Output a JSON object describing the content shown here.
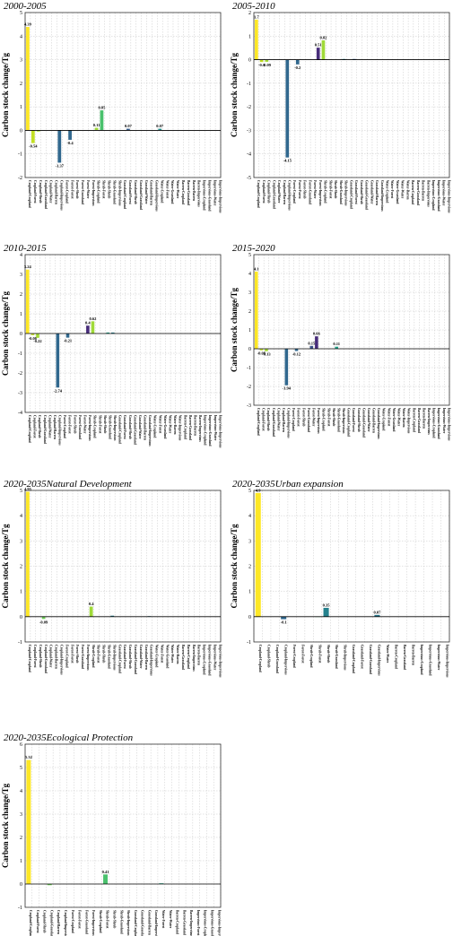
{
  "figure_name": "carbon-stock-change-figure",
  "chart_data": [
    {
      "type": "bar",
      "title": "2000-2005",
      "ylabel": "Carbon stock change/Tg",
      "ylim": [
        -2,
        5
      ],
      "yticks": [
        -2,
        -1,
        0,
        1,
        2,
        3,
        4,
        5
      ],
      "grid": true,
      "categories": [
        "Cropland-Cropland",
        "Cropland-Forest",
        "Cropland-Shrub",
        "Cropland-Grassland",
        "Cropland-Water",
        "Cropland-Barren",
        "Cropland-Impervious",
        "Forest-Cropland",
        "Forest-Forest",
        "Forest-Shrub",
        "Forest-Grassland",
        "Forest-Water",
        "Forest-Impervious",
        "Shrub-Cropland",
        "Shrub-Forest",
        "Shrub-Shrub",
        "Shrub-Grassland",
        "Shrub-Impervious",
        "Grassland-Cropland",
        "Grassland-Forest",
        "Grassland-Shrub",
        "Grassland-Grassland",
        "Grassland-Water",
        "Grassland-Barren",
        "Grassland-Impervious",
        "Water-Cropland",
        "Water-Forest",
        "Water-Grassland",
        "Water-Water",
        "Barren-Cropland",
        "Barren-Grassland",
        "Barren-Barren",
        "Barren-Impervious",
        "Impervious-Cropland",
        "Impervious-Grassland",
        "Impervious-Water",
        "Impervious-Impervious"
      ],
      "values": [
        4.39,
        -0.54,
        -0.05,
        0,
        0,
        0,
        -1.37,
        0,
        -0.4,
        0,
        0,
        0,
        0,
        0.11,
        0.85,
        0,
        0,
        0,
        0,
        0.07,
        0,
        0,
        0,
        0,
        0,
        0.07,
        0,
        0,
        0,
        0,
        0,
        0,
        0,
        0,
        0,
        0,
        0
      ],
      "data_labels": {
        "0": "4.39",
        "1": "-0.54",
        "6": "-1.37",
        "8": "-0.4",
        "13": "0.11",
        "14": "0.85",
        "19": "0.07",
        "25": "0.07"
      }
    },
    {
      "type": "bar",
      "title": "2005-2010",
      "ylabel": "Carbon stock change/Tg",
      "ylim": [
        -5,
        2
      ],
      "yticks": [
        -5,
        -4,
        -3,
        -2,
        -1,
        0,
        1,
        2
      ],
      "grid": true,
      "categories": [
        "Cropland-Cropland",
        "Cropland-Forest",
        "Cropland-Shrub",
        "Cropland-Grassland",
        "Cropland-Water",
        "Cropland-Barren",
        "Cropland-Impervious",
        "Forest-Cropland",
        "Forest-Forest",
        "Forest-Shrub",
        "Forest-Grassland",
        "Forest-Water",
        "Forest-Impervious",
        "Shrub-Cropland",
        "Shrub-Forest",
        "Shrub-Shrub",
        "Shrub-Grassland",
        "Shrub-Impervious",
        "Grassland-Cropland",
        "Grassland-Forest",
        "Grassland-Shrub",
        "Grassland-Grassland",
        "Grassland-Water",
        "Grassland-Barren",
        "Grassland-Impervious",
        "Water-Cropland",
        "Water-Forest",
        "Water-Grassland",
        "Water-Water",
        "Water-Barren",
        "Barren-Cropland",
        "Barren-Grassland",
        "Barren-Barren",
        "Barren-Impervious",
        "Impervious-Cropland",
        "Impervious-Grassland",
        "Impervious-Water",
        "Impervious-Impervious"
      ],
      "values": [
        1.7,
        -0.1,
        -0.09,
        0,
        0,
        0,
        -4.15,
        0,
        -0.2,
        0,
        0,
        0,
        0.51,
        0.82,
        0,
        0,
        0,
        0.03,
        0,
        0.03,
        0,
        0,
        0,
        0,
        0,
        0,
        0,
        0,
        0,
        0,
        0,
        0,
        0,
        0,
        0,
        0,
        0,
        0
      ],
      "data_labels": {
        "0": "1.7",
        "1": "-0.1",
        "2": "-0.09",
        "6": "-4.15",
        "8": "-0.2",
        "12": "0.51",
        "13": "0.82"
      }
    },
    {
      "type": "bar",
      "title": "2010-2015",
      "ylabel": "Carbon stock change/Tg",
      "ylim": [
        -4,
        4
      ],
      "yticks": [
        -4,
        -3,
        -2,
        -1,
        0,
        1,
        2,
        3,
        4
      ],
      "grid": true,
      "categories": [
        "Cropland-Cropland",
        "Cropland-Forest",
        "Cropland-Shrub",
        "Cropland-Grassland",
        "Cropland-Water",
        "Cropland-Barren",
        "Cropland-Impervious",
        "Forest-Cropland",
        "Forest-Forest",
        "Forest-Shrub",
        "Forest-Grassland",
        "Forest-Water",
        "Forest-Impervious",
        "Shrub-Cropland",
        "Shrub-Forest",
        "Shrub-Shrub",
        "Shrub-Grassland",
        "Shrub-Impervious",
        "Grassland-Cropland",
        "Grassland-Forest",
        "Grassland-Shrub",
        "Grassland-Grassland",
        "Grassland-Water",
        "Grassland-Barren",
        "Grassland-Impervious",
        "Water-Cropland",
        "Water-Forest",
        "Water-Grassland",
        "Water-Water",
        "Water-Barren",
        "Water-Impervious",
        "Barren-Cropland",
        "Barren-Grassland",
        "Barren-Barren",
        "Barren-Impervious",
        "Impervious-Cropland",
        "Impervious-Grassland",
        "Impervious-Water",
        "Impervious-Impervious"
      ],
      "values": [
        3.24,
        -0.08,
        -0.22,
        0,
        0,
        0,
        -2.74,
        0,
        -0.21,
        0,
        0,
        0,
        0.4,
        0.62,
        0,
        0,
        0.05,
        0.05,
        0,
        0,
        0,
        0,
        0,
        0,
        0,
        0,
        0,
        0,
        0,
        0,
        0,
        0,
        0,
        0,
        0,
        0,
        0,
        0,
        0
      ],
      "data_labels": {
        "0": "3.24",
        "1": "-0.08",
        "2": "-0.22",
        "6": "-2.74",
        "8": "-0.21",
        "12": "0.4",
        "13": "0.62"
      }
    },
    {
      "type": "bar",
      "title": "2015-2020",
      "ylabel": "Carbon stock change/Tg",
      "ylim": [
        -3,
        5
      ],
      "yticks": [
        -3,
        -2,
        -1,
        0,
        1,
        2,
        3,
        4,
        5
      ],
      "grid": true,
      "categories": [
        "Cropland-Cropland",
        "Cropland-Forest",
        "Cropland-Shrub",
        "Cropland-Grassland",
        "Cropland-Water",
        "Cropland-Barren",
        "Cropland-Impervious",
        "Forest-Cropland",
        "Forest-Forest",
        "Forest-Shrub",
        "Forest-Grassland",
        "Forest-Water",
        "Forest-Impervious",
        "Shrub-Cropland",
        "Shrub-Forest",
        "Shrub-Shrub",
        "Shrub-Grassland",
        "Shrub-Impervious",
        "Grassland-Cropland",
        "Grassland-Forest",
        "Grassland-Shrub",
        "Grassland-Grassland",
        "Grassland-Water",
        "Grassland-Barren",
        "Grassland-Impervious",
        "Water-Cropland",
        "Water-Forest",
        "Water-Grassland",
        "Water-Water",
        "Water-Barren",
        "Water-Impervious",
        "Barren-Cropland",
        "Barren-Grassland",
        "Barren-Barren",
        "Barren-Impervious",
        "Impervious-Cropland",
        "Impervious-Grassland",
        "Impervious-Water",
        "Impervious-Impervious"
      ],
      "values": [
        4.1,
        -0.08,
        -0.13,
        0,
        0,
        0,
        -1.94,
        0,
        -0.12,
        0,
        0,
        0.15,
        0.66,
        0,
        0,
        0,
        0.11,
        0,
        0,
        0,
        0,
        0,
        0,
        0,
        0,
        0,
        0,
        0,
        0,
        0,
        0,
        0,
        0,
        0,
        0,
        0,
        0,
        0,
        0
      ],
      "data_labels": {
        "0": "4.1",
        "1": "-0.08",
        "2": "-0.13",
        "6": "-1.94",
        "8": "-0.12",
        "11": "0.15",
        "12": "0.66",
        "16": "0.11"
      }
    },
    {
      "type": "bar",
      "title": "2020-2035Natural Development",
      "ylabel": "Carbon stock change/Tg",
      "ylim": [
        -1,
        5
      ],
      "yticks": [
        -1,
        0,
        1,
        2,
        3,
        4,
        5
      ],
      "grid": true,
      "categories": [
        "Cropland-Cropland",
        "Cropland-Forest",
        "Cropland-Shrub",
        "Cropland-Grassland",
        "Cropland-Water",
        "Cropland-Barren",
        "Cropland-Impervious",
        "Forest-Cropland",
        "Forest-Forest",
        "Forest-Shrub",
        "Forest-Grassland",
        "Forest-Impervious",
        "Shrub-Cropland",
        "Shrub-Forest",
        "Shrub-Shrub",
        "Shrub-Grassland",
        "Shrub-Impervious",
        "Grassland-Cropland",
        "Grassland-Forest",
        "Grassland-Shrub",
        "Grassland-Grassland",
        "Grassland-Water",
        "Grassland-Barren",
        "Grassland-Impervious",
        "Water-Cropland",
        "Water-Forest",
        "Water-Grassland",
        "Water-Water",
        "Water-Barren",
        "Barren-Grassland",
        "Barren-Cropland",
        "Barren-Impervious",
        "Barren-Barren",
        "Impervious-Cropland",
        "Impervious-Grassland",
        "Impervious-Water",
        "Impervious-Impervious"
      ],
      "values": [
        4.95,
        0,
        0,
        -0.09,
        0,
        0,
        0,
        0,
        0,
        0,
        0,
        0,
        0.4,
        0,
        0,
        0,
        0.04,
        0,
        0,
        0,
        0,
        0,
        0,
        0.02,
        0,
        0,
        0,
        0,
        0,
        0,
        0,
        0,
        0,
        0,
        0,
        0,
        0
      ],
      "data_labels": {
        "0": "4.95",
        "3": "-0.09",
        "12": "0.4"
      }
    },
    {
      "type": "bar",
      "title": "2020-2035Urban expansion",
      "ylabel": "Carbon stock change/Tg",
      "ylim": [
        -1,
        5
      ],
      "yticks": [
        -1,
        0,
        1,
        2,
        3,
        4,
        5
      ],
      "grid": true,
      "categories": [
        "Cropland-Cropland",
        "Cropland-Shrub",
        "Cropland-Grassland",
        "Cropland-Impervious",
        "Forest-Cropland",
        "Forest-Forest",
        "Shrub-Cropland",
        "Shrub-Forest",
        "Shrub-Shrub",
        "Shrub-Grassland",
        "Shrub-Impervious",
        "Grassland-Cropland",
        "Grassland-Forest",
        "Grassland-Grassland",
        "Grassland-Impervious",
        "Water-Water",
        "Barren-Cropland",
        "Barren-Grassland",
        "Barren-Barren",
        "Impervious-Cropland",
        "Impervious-Grassland",
        "Impervious-Water",
        "Impervious-Impervious"
      ],
      "values": [
        4.9,
        0,
        0,
        -0.1,
        0,
        0,
        0,
        0.01,
        0.35,
        0,
        0,
        0,
        0,
        0,
        0.07,
        0,
        0,
        0,
        0,
        0,
        0,
        0,
        0
      ],
      "data_labels": {
        "0": "4.9",
        "3": "-0.1",
        "8": "0.35",
        "14": "0.07"
      }
    },
    {
      "type": "bar",
      "title": "2020-2035Ecological Protection",
      "ylabel": "Carbon stock change/Tg",
      "ylim": [
        -1,
        6
      ],
      "yticks": [
        -1,
        0,
        1,
        2,
        3,
        4,
        5,
        6
      ],
      "grid": true,
      "categories": [
        "Cropland-Cropland",
        "Cropland-Forest",
        "Cropland-Shrub",
        "Cropland-Grassland",
        "Cropland-Barren",
        "Cropland-Impervious",
        "Forest-Cropland",
        "Forest-Forest",
        "Forest-Grassland",
        "Forest-Impervious",
        "Shrub-Cropland",
        "Shrub-Forest",
        "Shrub-Shrub",
        "Shrub-Grassland",
        "Shrub-Impervious",
        "Grassland-Cropland",
        "Grassland-Grassland",
        "Grassland-Barren",
        "Grassland-Impervious",
        "Water-Forest",
        "Water-Water",
        "Barren-Cropland",
        "Barren-Grassland",
        "Barren-Impervious",
        "Impervious-Forest",
        "Impervious-Cropland",
        "Impervious-Grassland",
        "Impervious-Impervious"
      ],
      "values": [
        5.32,
        0,
        0,
        -0.05,
        0,
        0,
        0,
        0,
        0,
        0,
        0,
        0.41,
        0,
        0,
        0,
        0,
        0,
        0,
        0,
        0.03,
        0,
        0,
        0,
        0,
        0,
        0,
        0,
        0
      ],
      "data_labels": {
        "0": "5.32",
        "11": "0.41"
      }
    }
  ]
}
